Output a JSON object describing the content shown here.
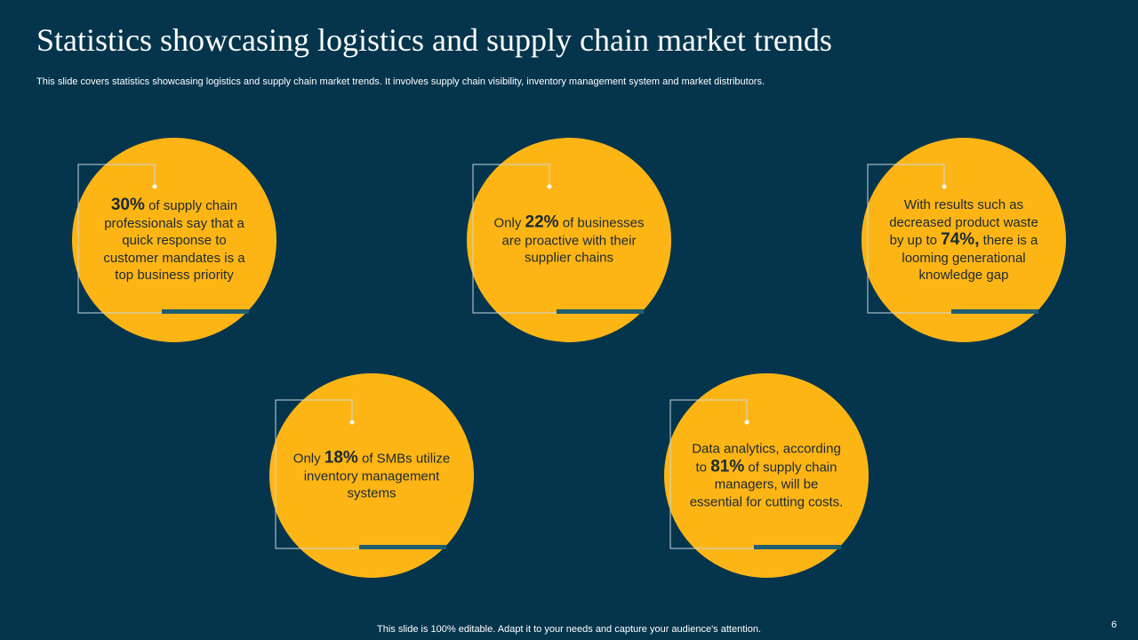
{
  "header": {
    "title": "Statistics showcasing logistics and supply chain market trends",
    "subtitle": "This slide covers statistics showcasing logistics and supply chain market trends. It involves supply chain visibility, inventory management system and market distributors."
  },
  "cards": [
    {
      "before": "",
      "stat": "30%",
      "after": "of supply chain professionals say that a quick response to customer mandates is a top business priority"
    },
    {
      "before": "Only",
      "stat": "22%",
      "after": "of businesses are proactive with their supplier chains"
    },
    {
      "before": "With results such as decreased product waste by up to",
      "stat": "74%,",
      "after": "there is a looming generational knowledge gap"
    },
    {
      "before": "Only",
      "stat": "18%",
      "after": "of SMBs utilize inventory management systems"
    },
    {
      "before": "Data analytics, according to",
      "stat": "81%",
      "after": "of supply chain managers, will be essential for cutting costs."
    }
  ],
  "footer": {
    "note": "This slide is 100% editable. Adapt it to your needs and capture your audience's attention.",
    "page": "6"
  }
}
